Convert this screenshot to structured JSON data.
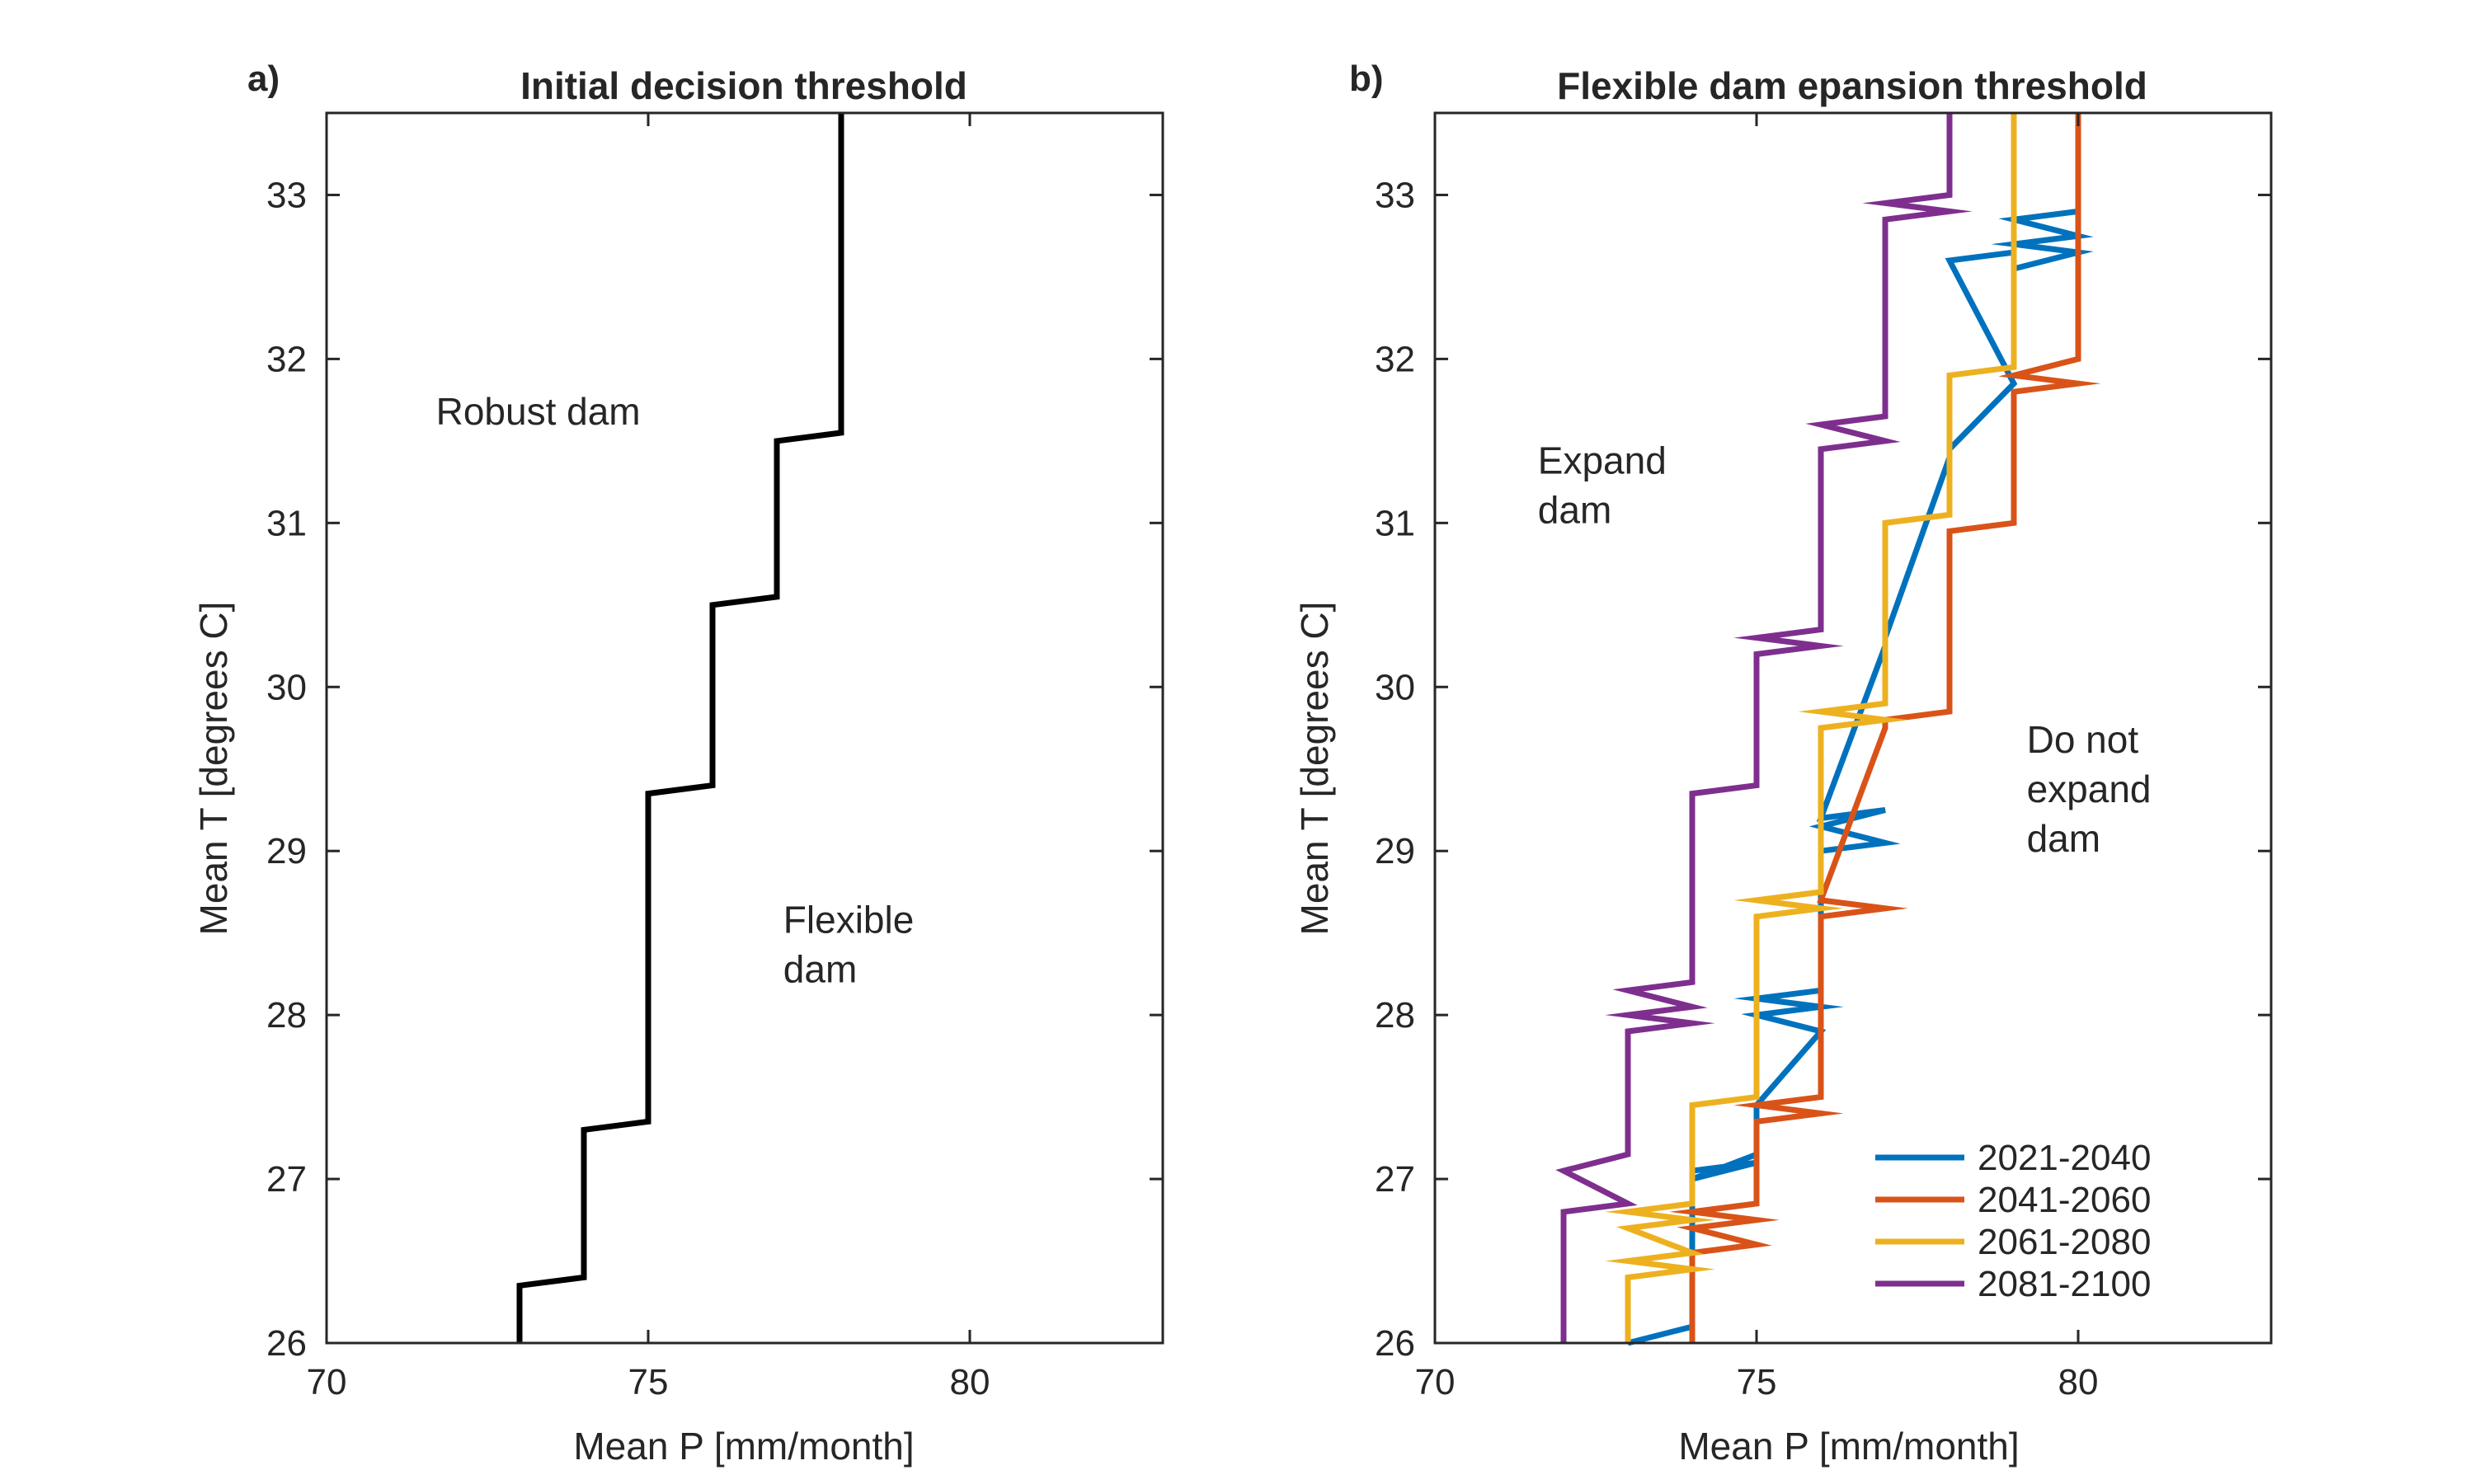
{
  "chart_data": [
    {
      "type": "line",
      "panel_label": "a)",
      "title": "Initial decision threshold",
      "xlabel": "Mean P [mm/month]",
      "ylabel": "Mean T [degrees C]",
      "xlim": [
        70,
        83
      ],
      "ylim": [
        26,
        33.5
      ],
      "xticks": [
        70,
        75,
        80
      ],
      "yticks": [
        26,
        27,
        28,
        29,
        30,
        31,
        32,
        33
      ],
      "grid": false,
      "annotations": [
        {
          "lines": [
            "Robust dam"
          ],
          "x": 71.7,
          "y": 31.6
        },
        {
          "lines": [
            "Flexible",
            "dam"
          ],
          "x": 77.1,
          "y": 28.5
        }
      ],
      "series": [
        {
          "color": "#000000",
          "x": [
            73,
            73,
            74,
            74,
            75,
            75,
            76,
            76,
            77,
            77,
            78,
            78
          ],
          "y": [
            26,
            26.35,
            26.4,
            27.3,
            27.35,
            29.35,
            29.4,
            30.5,
            30.55,
            31.5,
            31.55,
            33.5
          ]
        }
      ]
    },
    {
      "type": "line",
      "panel_label": "b)",
      "title": "Flexible dam epansion threshold",
      "xlabel": "Mean P [mm/month]",
      "ylabel": "Mean T [degrees C]",
      "xlim": [
        70,
        83
      ],
      "ylim": [
        26,
        33.5
      ],
      "xticks": [
        70,
        75,
        80
      ],
      "yticks": [
        26,
        27,
        28,
        29,
        30,
        31,
        32,
        33
      ],
      "grid": false,
      "legend_position": "bottom-right",
      "annotations": [
        {
          "lines": [
            "Expand",
            "dam"
          ],
          "x": 71.6,
          "y": 31.3
        },
        {
          "lines": [
            "Do not",
            "expand",
            "dam"
          ],
          "x": 79.2,
          "y": 29.6
        }
      ],
      "series": [
        {
          "name": "2021-2040",
          "color": "#0072BD",
          "x": [
            73,
            74,
            74,
            75,
            74,
            75,
            75,
            76,
            75,
            76,
            75,
            76,
            76,
            77,
            76,
            77,
            76,
            77,
            77,
            78,
            78,
            79,
            78,
            79,
            79,
            80,
            79,
            80,
            79,
            80
          ],
          "y": [
            26.0,
            26.1,
            27.05,
            27.1,
            27.0,
            27.15,
            27.45,
            27.9,
            28.0,
            28.05,
            28.1,
            28.15,
            29.0,
            29.05,
            29.15,
            29.25,
            29.2,
            30.25,
            30.3,
            31.4,
            31.45,
            31.85,
            32.6,
            32.65,
            32.55,
            32.65,
            32.7,
            32.75,
            32.85,
            32.9
          ]
        },
        {
          "name": "2041-2060",
          "color": "#D95319",
          "x": [
            74,
            74,
            75,
            74,
            75,
            74,
            75,
            75,
            76,
            75,
            76,
            76,
            77,
            76,
            77,
            77,
            78,
            78,
            79,
            79,
            80,
            79,
            80,
            80
          ],
          "y": [
            26.0,
            26.55,
            26.6,
            26.7,
            26.75,
            26.8,
            26.85,
            27.35,
            27.4,
            27.45,
            27.5,
            28.6,
            28.65,
            28.7,
            29.75,
            29.8,
            29.85,
            30.95,
            31.0,
            31.8,
            31.85,
            31.9,
            32.0,
            33.5
          ]
        },
        {
          "name": "2061-2080",
          "color": "#EDB120",
          "x": [
            73,
            73,
            74,
            73,
            74,
            73,
            74,
            73,
            74,
            74,
            75,
            75,
            76,
            75,
            76,
            76,
            77,
            76,
            77,
            77,
            78,
            78,
            79,
            79
          ],
          "y": [
            26.0,
            26.4,
            26.45,
            26.5,
            26.55,
            26.7,
            26.75,
            26.8,
            26.85,
            27.45,
            27.5,
            28.6,
            28.65,
            28.7,
            28.75,
            29.75,
            29.8,
            29.85,
            29.9,
            31.0,
            31.05,
            31.9,
            31.95,
            33.5
          ]
        },
        {
          "name": "2081-2100",
          "color": "#7E2F8E",
          "x": [
            72,
            72,
            73,
            72,
            73,
            73,
            74,
            73,
            74,
            73,
            74,
            74,
            75,
            75,
            76,
            75,
            76,
            76,
            77,
            76,
            77,
            77,
            78,
            77,
            78,
            78
          ],
          "y": [
            26.0,
            26.8,
            26.85,
            27.05,
            27.15,
            27.9,
            27.95,
            28.0,
            28.05,
            28.15,
            28.2,
            29.35,
            29.4,
            30.2,
            30.25,
            30.3,
            30.35,
            31.45,
            31.5,
            31.6,
            31.65,
            32.85,
            32.9,
            32.95,
            33.0,
            33.5
          ]
        }
      ]
    }
  ]
}
